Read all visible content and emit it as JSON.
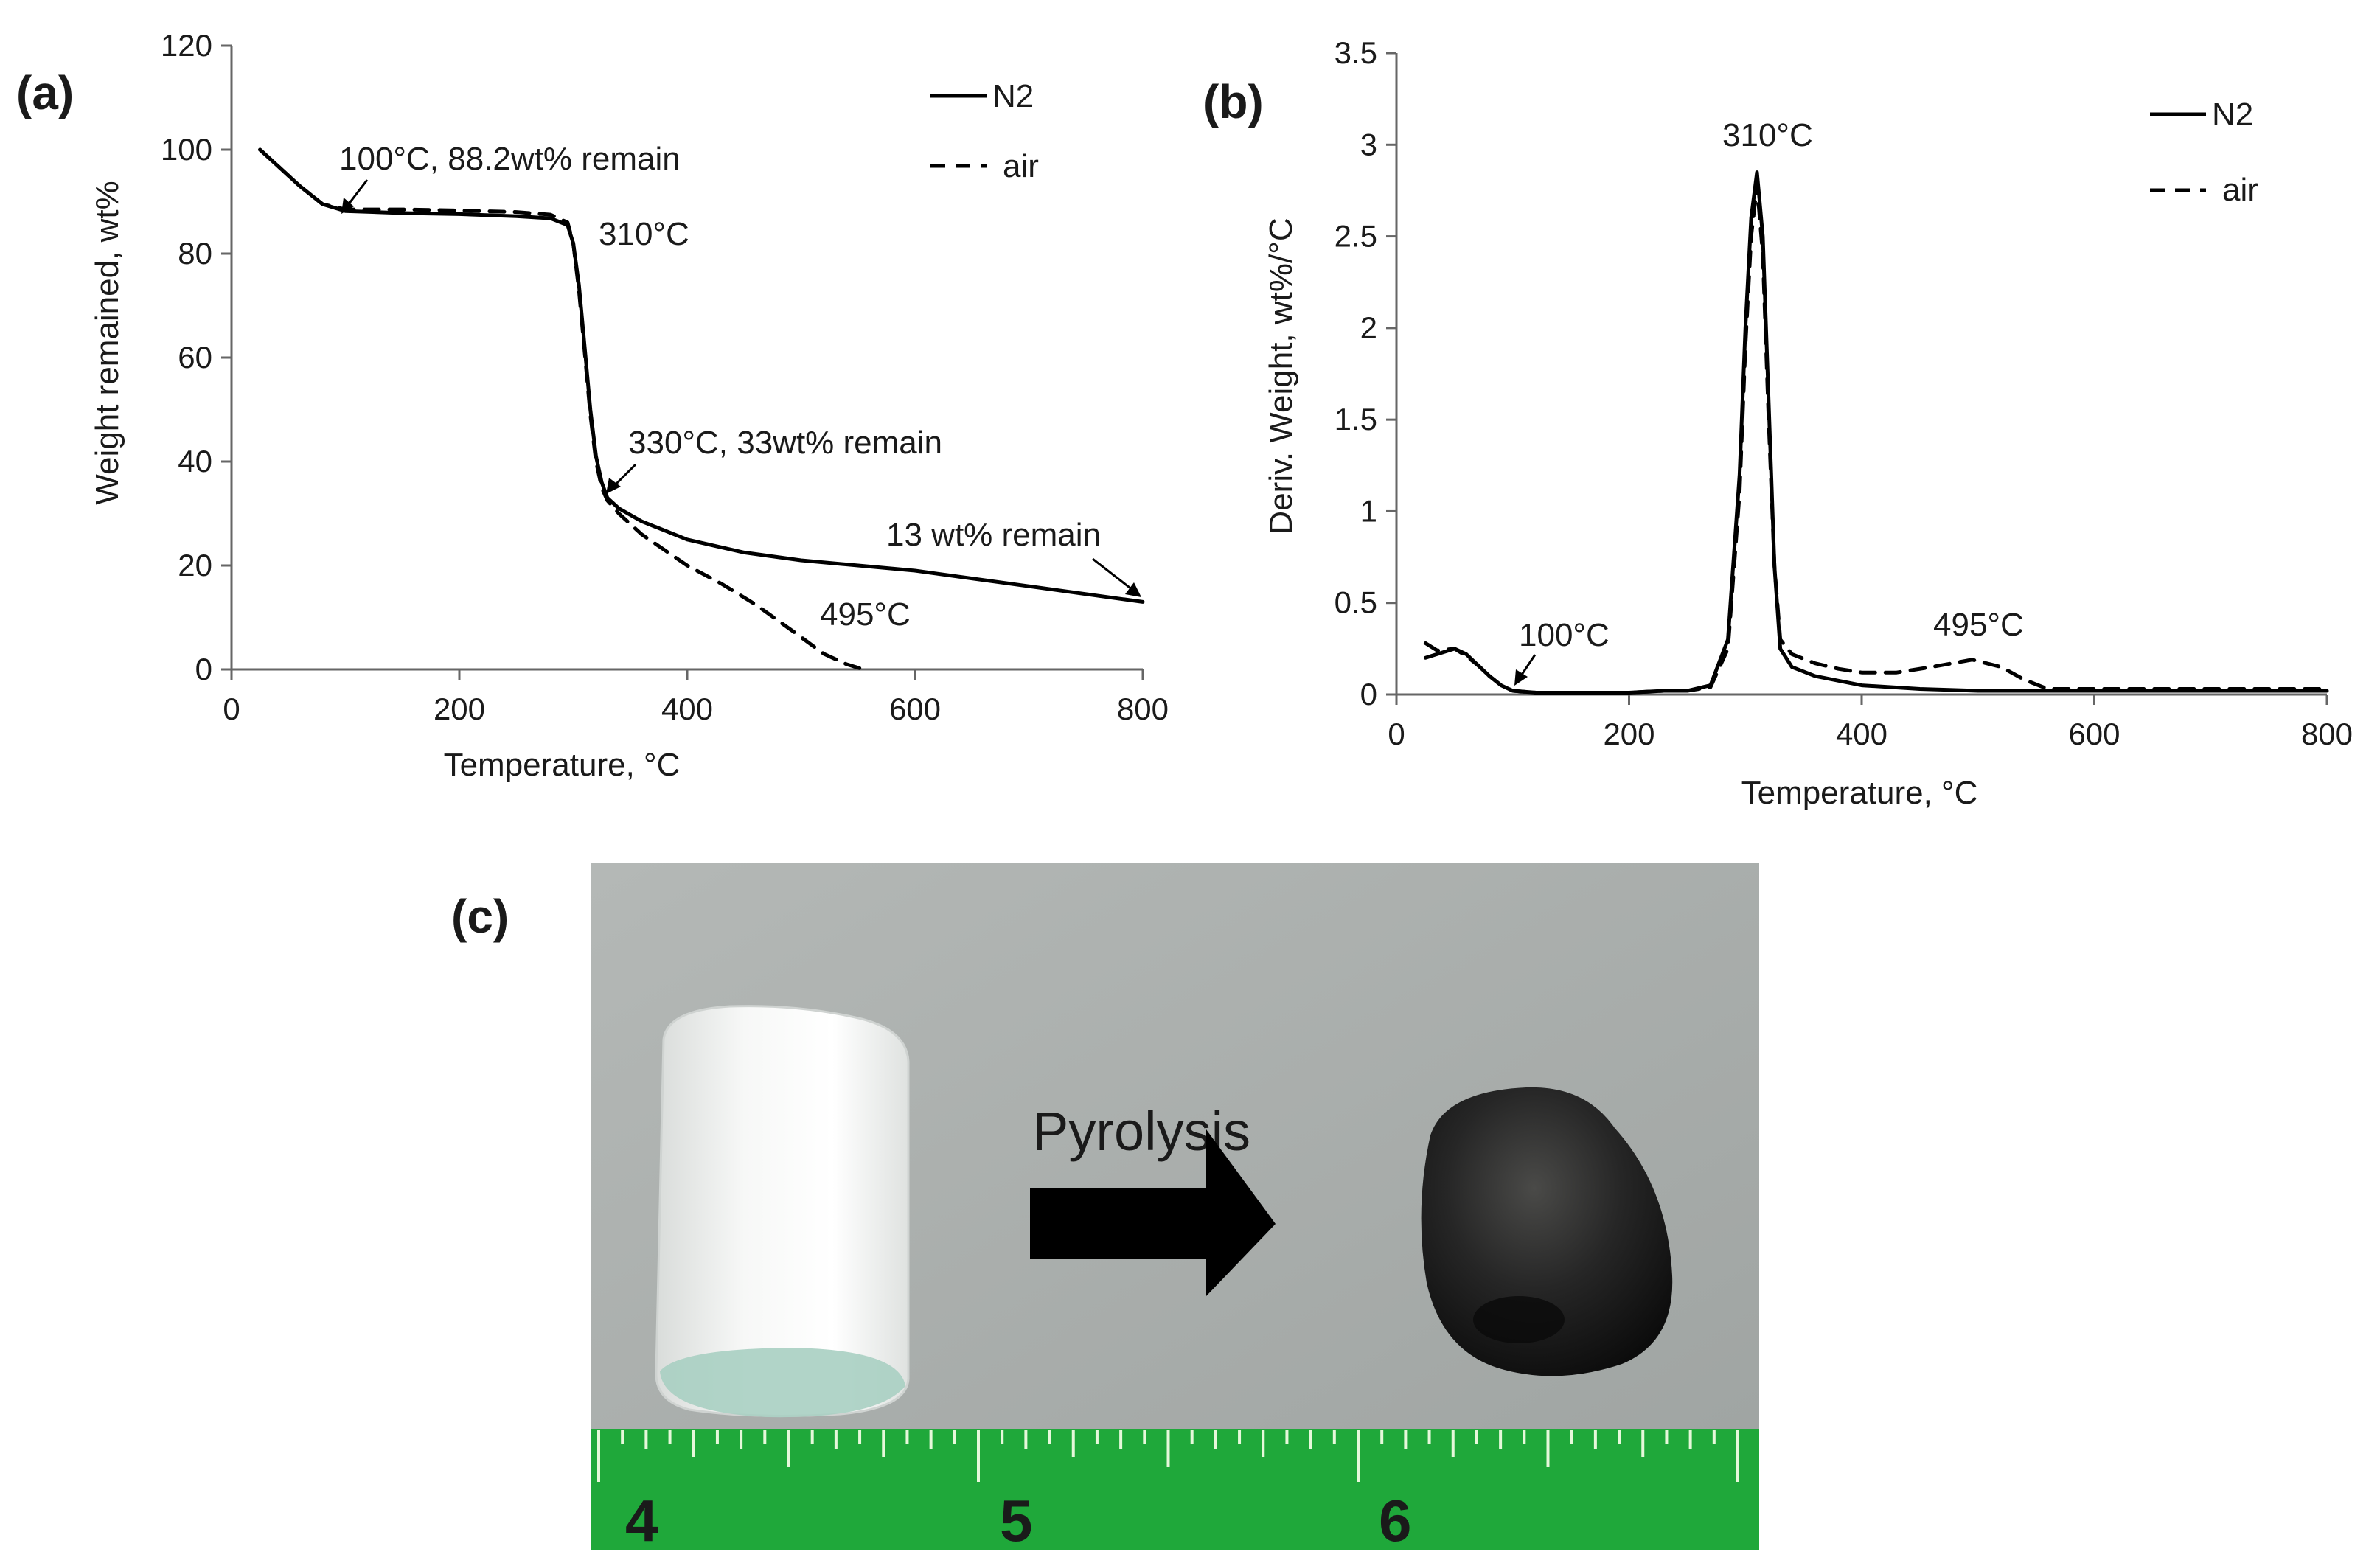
{
  "colors": {
    "series": "#000000",
    "ruler_green": "#1fa83a",
    "photo_bg": "#a9adab",
    "char_black": "#1b1b1b"
  },
  "panel_a": {
    "label": "(a)",
    "annotations": {
      "a100": "100°C, 88.2wt% remain",
      "a310": "310°C",
      "a330": "330°C, 33wt% remain",
      "a13": "13 wt% remain",
      "a495": "495°C"
    }
  },
  "panel_b": {
    "label": "(b)",
    "annotations": {
      "b310": "310°C",
      "b100": "100°C",
      "b495": "495°C"
    }
  },
  "panel_c": {
    "label": "(c)",
    "arrow_label": "Pyrolysis",
    "ruler_numbers": [
      "4",
      "5",
      "6"
    ],
    "before_icon": "white-foam-cylinder",
    "after_icon": "black-carbon-pellet"
  },
  "chart_data": [
    {
      "type": "line",
      "xlabel": "Temperature, °C",
      "ylabel": "Weight remained, wt%",
      "xlim": [
        0,
        800
      ],
      "ylim": [
        0,
        120
      ],
      "xticks": [
        0,
        200,
        400,
        600,
        800
      ],
      "yticks": [
        0,
        20,
        40,
        60,
        80,
        100,
        120
      ],
      "legend": "top-right",
      "series": [
        {
          "name": "N2",
          "style": "solid",
          "x": [
            25,
            40,
            60,
            80,
            100,
            150,
            200,
            250,
            280,
            295,
            300,
            305,
            310,
            315,
            320,
            325,
            330,
            340,
            360,
            400,
            450,
            500,
            550,
            600,
            650,
            700,
            750,
            800
          ],
          "y": [
            100,
            97,
            93,
            89.5,
            88.2,
            87.8,
            87.6,
            87.2,
            86.8,
            85.5,
            82,
            74,
            62,
            50,
            41,
            36,
            33,
            31,
            28.5,
            25,
            22.5,
            21,
            20,
            19,
            17.5,
            16,
            14.5,
            13
          ]
        },
        {
          "name": "air",
          "style": "dashed",
          "x": [
            25,
            40,
            60,
            80,
            100,
            150,
            200,
            250,
            280,
            295,
            300,
            305,
            310,
            315,
            320,
            325,
            330,
            340,
            360,
            400,
            430,
            460,
            495,
            520,
            540,
            555
          ],
          "y": [
            100,
            97,
            93,
            89.5,
            88.5,
            88.5,
            88.3,
            88,
            87.5,
            86,
            82,
            73,
            61,
            49,
            40,
            35,
            32.5,
            30,
            26,
            20,
            16.5,
            12.5,
            7,
            3,
            1,
            0
          ]
        }
      ]
    },
    {
      "type": "line",
      "xlabel": "Temperature, °C",
      "ylabel": "Deriv. Weight, wt%/°C",
      "xlim": [
        0,
        800
      ],
      "ylim": [
        0,
        3.5
      ],
      "xticks": [
        0,
        200,
        400,
        600,
        800
      ],
      "yticks": [
        0,
        0.5,
        1,
        1.5,
        2,
        2.5,
        3,
        3.5
      ],
      "ytick_labels": [
        "0",
        "0.5",
        "1",
        "1.5",
        "2",
        "2.5",
        "3",
        "3.5"
      ],
      "legend": "top-right",
      "series": [
        {
          "name": "N2",
          "style": "solid",
          "x": [
            25,
            35,
            50,
            60,
            70,
            80,
            90,
            100,
            120,
            150,
            200,
            230,
            250,
            270,
            285,
            295,
            300,
            305,
            310,
            315,
            320,
            325,
            330,
            340,
            360,
            400,
            450,
            500,
            550,
            600,
            800
          ],
          "y": [
            0.2,
            0.22,
            0.25,
            0.22,
            0.16,
            0.1,
            0.05,
            0.02,
            0.01,
            0.01,
            0.01,
            0.02,
            0.02,
            0.05,
            0.3,
            1.2,
            2.0,
            2.6,
            2.85,
            2.5,
            1.6,
            0.7,
            0.25,
            0.15,
            0.1,
            0.05,
            0.03,
            0.02,
            0.02,
            0.02,
            0.02
          ]
        },
        {
          "name": "air",
          "style": "dashed",
          "x": [
            25,
            35,
            50,
            60,
            70,
            80,
            90,
            100,
            120,
            150,
            200,
            230,
            250,
            270,
            285,
            295,
            300,
            305,
            310,
            315,
            320,
            325,
            330,
            340,
            360,
            380,
            400,
            430,
            460,
            495,
            520,
            540,
            560,
            600,
            800
          ],
          "y": [
            0.28,
            0.24,
            0.25,
            0.21,
            0.16,
            0.1,
            0.05,
            0.02,
            0.01,
            0.01,
            0.01,
            0.02,
            0.02,
            0.04,
            0.25,
            1.1,
            1.9,
            2.5,
            2.78,
            2.4,
            1.5,
            0.7,
            0.3,
            0.22,
            0.17,
            0.14,
            0.12,
            0.12,
            0.15,
            0.19,
            0.15,
            0.08,
            0.03,
            0.03,
            0.03
          ]
        }
      ]
    }
  ]
}
